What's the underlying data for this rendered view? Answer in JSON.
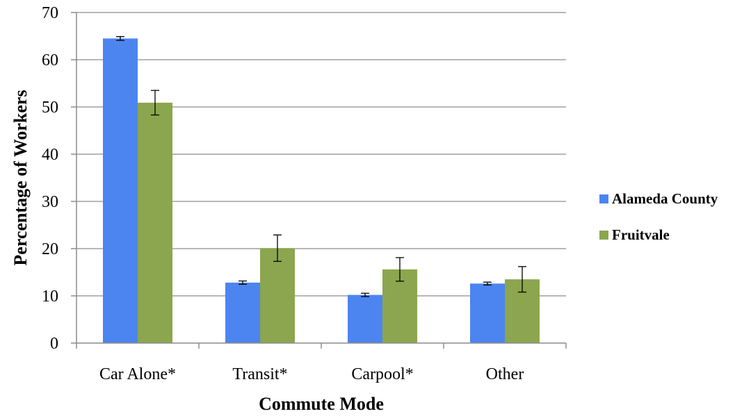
{
  "chart_data": {
    "type": "bar",
    "categories": [
      "Car Alone*",
      "Transit*",
      "Carpool*",
      "Other"
    ],
    "series": [
      {
        "name": "Alameda County",
        "color": "#4c85f0",
        "values": [
          64.5,
          12.8,
          10.2,
          12.6
        ],
        "error": [
          0.4,
          0.35,
          0.35,
          0.3
        ]
      },
      {
        "name": "Fruitvale",
        "color": "#8ba64e",
        "values": [
          50.9,
          20.1,
          15.6,
          13.5
        ],
        "error": [
          2.6,
          2.8,
          2.5,
          2.7
        ]
      }
    ],
    "xlabel": "Commute Mode",
    "ylabel": "Percentage of Workers",
    "ylim": [
      0,
      70
    ],
    "yticks": [
      0,
      10,
      20,
      30,
      40,
      50,
      60,
      70
    ],
    "grid": true,
    "legend": "right"
  }
}
